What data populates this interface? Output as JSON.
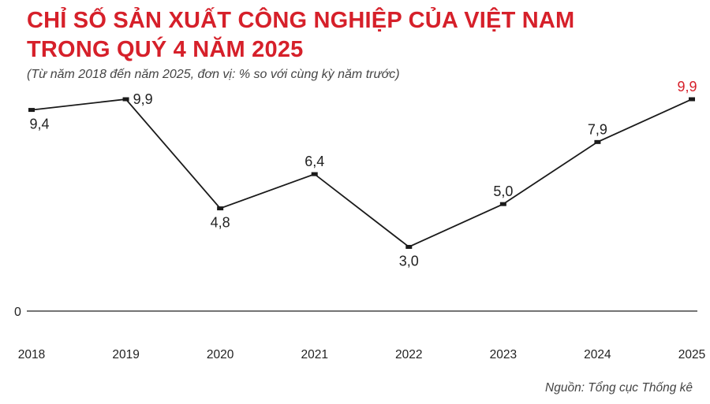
{
  "header": {
    "title_line1": "CHỈ SỐ SẢN XUẤT CÔNG NGHIỆP CỦA VIỆT NAM",
    "title_line2": "TRONG QUÝ 4 NĂM 2025",
    "subtitle": "(Từ năm 2018 đến năm 2025, đơn vị: % so với cùng kỳ năm trước)"
  },
  "source": "Nguồn: Tổng cục Thống kê",
  "colors": {
    "title": "#d6202a",
    "line": "#1a1a1a",
    "highlight_label": "#d6202a"
  },
  "chart_data": {
    "type": "line",
    "categories": [
      "2018",
      "2019",
      "2020",
      "2021",
      "2022",
      "2023",
      "2024",
      "2025"
    ],
    "series": [
      {
        "values": [
          9.4,
          9.9,
          4.8,
          6.4,
          3.0,
          5.0,
          7.9,
          9.9
        ]
      }
    ],
    "value_labels": [
      "9,4",
      "9,9",
      "4,8",
      "6,4",
      "3,0",
      "5,0",
      "7,9",
      "9,9"
    ],
    "highlighted_index": 7,
    "y_tick_labels": [
      "0"
    ],
    "ylim": [
      0,
      9.9
    ],
    "grid": false,
    "legend": "none"
  }
}
